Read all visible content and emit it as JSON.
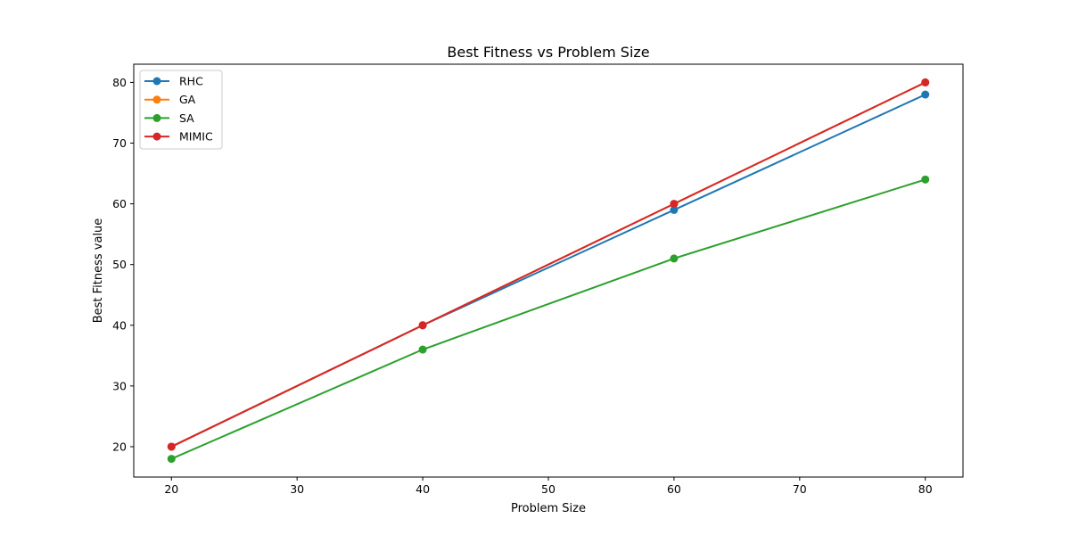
{
  "chart_data": {
    "type": "line",
    "title": "Best Fitness vs Problem Size",
    "xlabel": "Problem Size",
    "ylabel": "Best Fitness value",
    "x": [
      20,
      40,
      60,
      80
    ],
    "xlim": [
      17,
      83
    ],
    "ylim": [
      15,
      83
    ],
    "xticks": [
      20,
      30,
      40,
      50,
      60,
      70,
      80
    ],
    "yticks": [
      20,
      30,
      40,
      50,
      60,
      70,
      80
    ],
    "grid": false,
    "legend_position": "top-left",
    "series": [
      {
        "name": "RHC",
        "color": "#1f77b4",
        "values": [
          20,
          40,
          59,
          78
        ]
      },
      {
        "name": "GA",
        "color": "#ff7f0e",
        "values": [
          20,
          40,
          60,
          80
        ]
      },
      {
        "name": "SA",
        "color": "#2ca02c",
        "values": [
          18,
          36,
          51,
          64
        ]
      },
      {
        "name": "MIMIC",
        "color": "#d62728",
        "values": [
          20,
          40,
          60,
          80
        ]
      }
    ]
  }
}
